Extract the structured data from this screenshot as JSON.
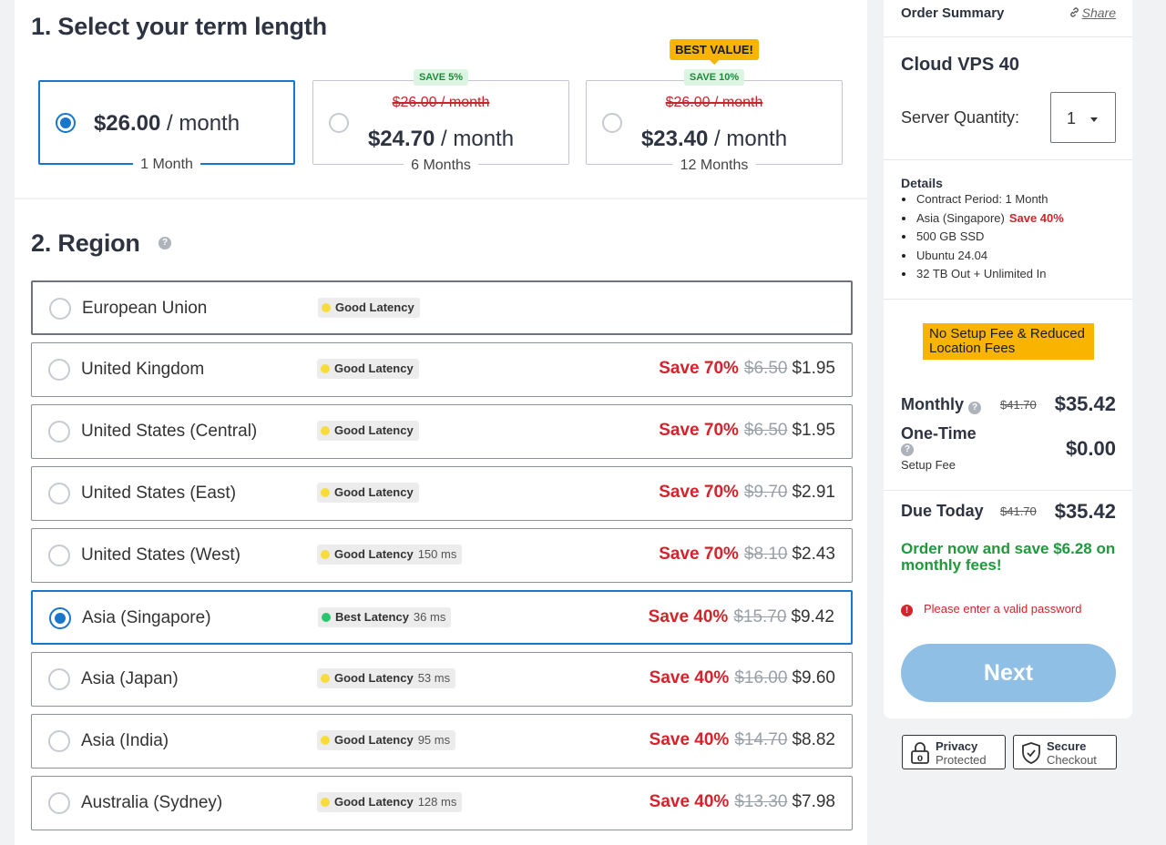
{
  "term": {
    "title": "1. Select your term length",
    "options": [
      {
        "price": "$26.00",
        "unit": " / month",
        "period": "1 Month",
        "selected": true
      },
      {
        "old": "$26.00 / month",
        "price": "$24.70",
        "unit": " / month",
        "period": "6 Months",
        "save": "SAVE 5%"
      },
      {
        "old": "$26.00 / month",
        "price": "$23.40",
        "unit": " / month",
        "period": "12 Months",
        "save": "SAVE 10%",
        "best": "BEST VALUE!"
      }
    ]
  },
  "region": {
    "title": "2. Region",
    "help_icon": "question-circle-icon",
    "rows": [
      {
        "name": "European Union",
        "latency": "Good Latency",
        "ms": "",
        "save": "",
        "was": "",
        "now": ""
      },
      {
        "name": "United Kingdom",
        "latency": "Good Latency",
        "ms": "",
        "save": "Save 70%",
        "was": "$6.50",
        "now": "$1.95"
      },
      {
        "name": "United States (Central)",
        "latency": "Good Latency",
        "ms": "",
        "save": "Save 70%",
        "was": "$6.50",
        "now": "$1.95"
      },
      {
        "name": "United States (East)",
        "latency": "Good Latency",
        "ms": "",
        "save": "Save 70%",
        "was": "$9.70",
        "now": "$2.91"
      },
      {
        "name": "United States (West)",
        "latency": "Good Latency",
        "ms": "150 ms",
        "save": "Save 70%",
        "was": "$8.10",
        "now": "$2.43"
      },
      {
        "name": "Asia (Singapore)",
        "latency": "Best Latency",
        "ms": "36 ms",
        "save": "Save 40%",
        "was": "$15.70",
        "now": "$9.42",
        "selected": true
      },
      {
        "name": "Asia (Japan)",
        "latency": "Good Latency",
        "ms": "53 ms",
        "save": "Save 40%",
        "was": "$16.00",
        "now": "$9.60"
      },
      {
        "name": "Asia (India)",
        "latency": "Good Latency",
        "ms": "95 ms",
        "save": "Save 40%",
        "was": "$14.70",
        "now": "$8.82"
      },
      {
        "name": "Australia (Sydney)",
        "latency": "Good Latency",
        "ms": "128 ms",
        "save": "Save 40%",
        "was": "$13.30",
        "now": "$7.98"
      }
    ]
  },
  "summary": {
    "title": "Order Summary",
    "share": "Share",
    "product": "Cloud VPS 40",
    "qty_label": "Server Quantity:",
    "qty_value": "1",
    "details_title": "Details",
    "details": [
      {
        "text": "Contract Period: 1 Month"
      },
      {
        "text": "Asia (Singapore)",
        "highlight": "Save 40%"
      },
      {
        "text": "500 GB SSD"
      },
      {
        "text": "Ubuntu 24.04"
      },
      {
        "text": "32 TB Out + Unlimited In"
      }
    ],
    "promo": "No Setup Fee & Reduced Location Fees",
    "monthly_label": "Monthly",
    "monthly_was": "$41.70",
    "monthly_value": "$35.42",
    "onetime_label": "One-Time",
    "onetime_sub": "Setup Fee",
    "onetime_value": "$0.00",
    "due_label": "Due Today",
    "due_was": "$41.70",
    "due_value": "$35.42",
    "save_msg": "Order now and save $6.28 on monthly fees!",
    "error": "Please enter a valid password",
    "next": "Next"
  },
  "trust": {
    "privacy_1": "Privacy",
    "privacy_2": "Protected",
    "secure_1": "Secure",
    "secure_2": "Checkout"
  },
  "colors": {
    "accent": "#1976c9",
    "save_red": "#d4232b",
    "promo_yellow": "#f9b400",
    "save_green": "#1e9a3c",
    "button_disabled": "#8fbfe5"
  }
}
